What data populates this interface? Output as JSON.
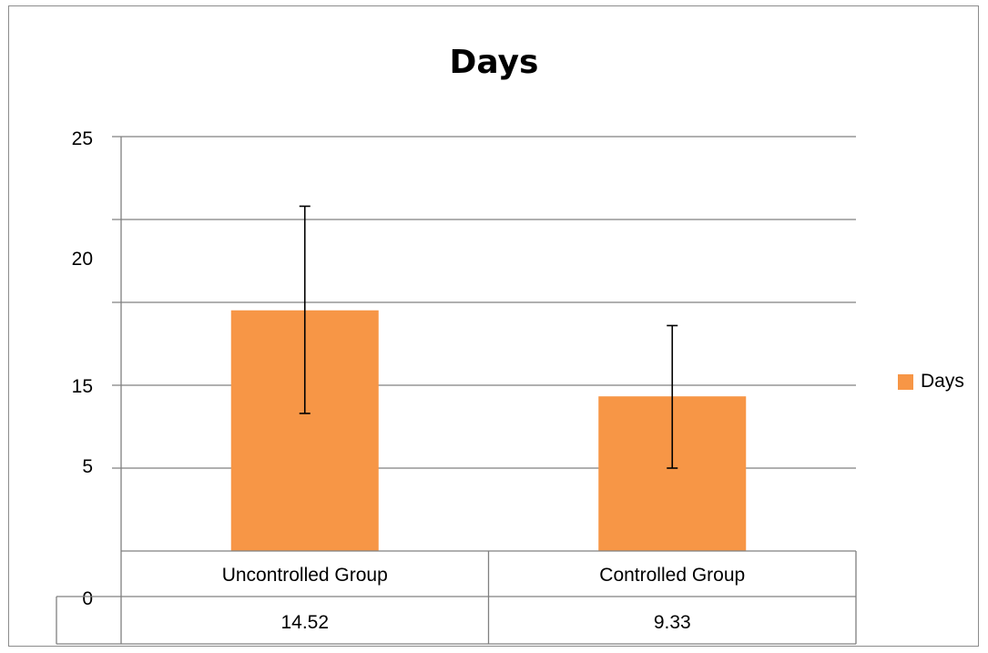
{
  "chart_data": {
    "type": "bar",
    "title": "Days",
    "categories": [
      "Uncontrolled Group",
      "Controlled Group"
    ],
    "series": [
      {
        "name": "Days",
        "values": [
          14.52,
          9.33
        ],
        "error_low": [
          8.3,
          5.0
        ],
        "error_high": [
          20.8,
          13.6
        ],
        "color": "#f79646"
      }
    ],
    "y_tick_labels": [
      "0",
      "5",
      "15",
      "20",
      "25"
    ],
    "ylim": [
      0,
      25
    ],
    "grid": true,
    "legend": "right",
    "data_table": true,
    "table_values": [
      "14.52",
      "9.33"
    ]
  }
}
